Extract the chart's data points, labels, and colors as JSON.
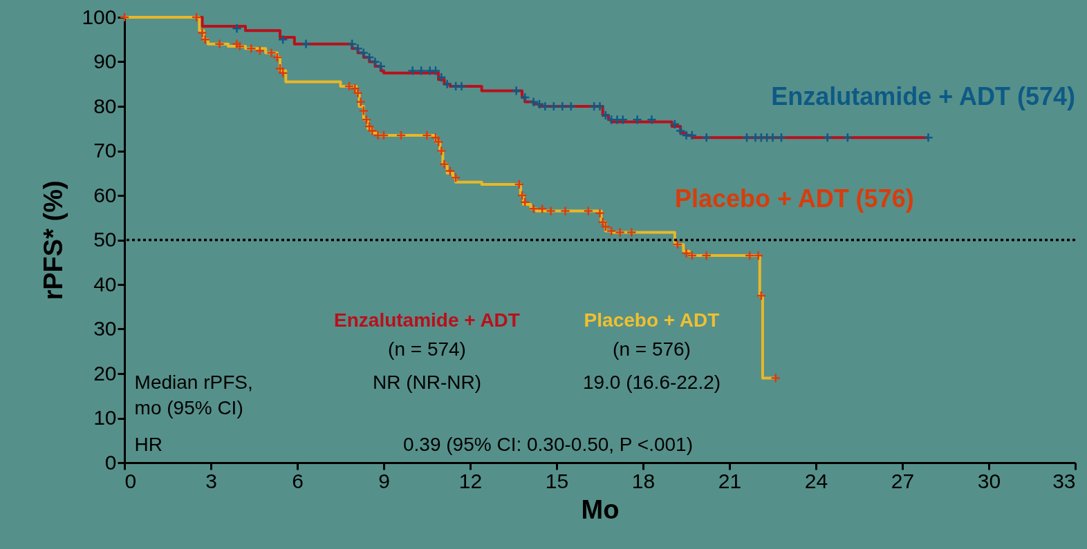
{
  "chart_data": {
    "type": "step",
    "xlabel": "Mo",
    "ylabel": "rPFS* (%)",
    "xlim": [
      0,
      33
    ],
    "xticks": [
      0,
      3,
      6,
      9,
      12,
      15,
      18,
      21,
      24,
      27,
      30,
      33
    ],
    "ylim": [
      0,
      100
    ],
    "yticks": [
      0,
      10,
      20,
      30,
      40,
      50,
      60,
      70,
      80,
      90,
      100
    ],
    "grid": false,
    "legend": false,
    "ref_lines": [
      {
        "axis": "y",
        "value": 50,
        "color": "#000000",
        "line_style": "dotted"
      }
    ],
    "series": [
      {
        "color": "#b8101c",
        "x": [
          0,
          2.7,
          4.2,
          5.4,
          5.9,
          7.9,
          8.1,
          8.3,
          8.5,
          8.7,
          8.9,
          9.0,
          10.9,
          11.1,
          11.3,
          12.4,
          13.8,
          13.9,
          14.2,
          14.4,
          16.6,
          16.8,
          16.9,
          19.0,
          19.3,
          19.5,
          19.7,
          27.9
        ],
        "values": [
          100,
          98,
          97,
          95.5,
          94,
          93,
          92,
          91,
          90,
          89,
          88,
          87.5,
          86,
          85,
          84.5,
          83.5,
          82,
          81,
          80.5,
          80,
          78,
          77,
          76.5,
          75.5,
          74,
          73.5,
          73,
          73
        ]
      },
      {
        "color": "#e8b828",
        "x": [
          0,
          2.6,
          2.75,
          2.9,
          3.6,
          4.2,
          4.9,
          5.3,
          5.4,
          5.6,
          7.5,
          8.05,
          8.15,
          8.3,
          8.45,
          8.6,
          8.8,
          10.8,
          10.95,
          11.05,
          11.2,
          11.4,
          11.5,
          12.4,
          13.75,
          13.85,
          14.1,
          14.3,
          16.55,
          16.7,
          16.9,
          19.1,
          19.4,
          19.6,
          22.05,
          22.15,
          22.6
        ],
        "values": [
          100,
          97,
          95,
          94,
          93.5,
          93,
          92,
          91,
          88,
          85.5,
          84.5,
          83,
          80,
          77,
          75,
          74,
          73.5,
          72,
          70,
          67,
          65,
          64,
          63,
          62.5,
          60,
          58,
          57,
          56.5,
          54,
          52,
          51.7,
          49,
          47.5,
          46.5,
          37.5,
          19,
          19
        ]
      },
      {
        "type": "scatter",
        "marker": "cross",
        "name": "Enzalutamide + ADT (574)",
        "color": "#0d5a86",
        "x": [
          3.9,
          5.5,
          6.3,
          7.9,
          8.1,
          8.3,
          8.5,
          8.7,
          8.9,
          10.0,
          10.3,
          10.6,
          10.8,
          11.0,
          11.2,
          11.5,
          11.7,
          13.6,
          13.9,
          14.2,
          14.4,
          14.6,
          14.9,
          15.2,
          15.5,
          16.3,
          16.5,
          16.7,
          16.9,
          17.1,
          17.3,
          17.8,
          18.3,
          19.1,
          19.3,
          19.5,
          19.7,
          20.2,
          21.6,
          21.9,
          22.1,
          22.3,
          22.5,
          22.8,
          24.4,
          25.1,
          27.9
        ],
        "values": [
          97.5,
          95,
          94,
          94,
          93,
          92,
          91,
          90,
          89,
          88,
          88,
          88,
          88,
          86.5,
          85,
          84.5,
          84.5,
          83.5,
          82,
          81,
          80.5,
          80,
          80,
          80,
          80,
          80,
          80,
          78,
          77,
          77,
          77,
          77,
          77,
          76,
          74.5,
          73.5,
          73.5,
          73,
          73,
          73,
          73,
          73,
          73,
          73,
          73,
          73,
          73
        ]
      },
      {
        "type": "scatter",
        "marker": "cross",
        "name": "Placebo + ADT (576)",
        "color": "#d83c0c",
        "x": [
          0,
          2.5,
          2.7,
          2.8,
          3.3,
          3.9,
          4.0,
          4.4,
          4.7,
          5.1,
          5.3,
          5.4,
          5.5,
          7.8,
          8.0,
          8.1,
          8.2,
          8.3,
          8.4,
          8.5,
          8.6,
          8.8,
          9.0,
          9.6,
          10.5,
          10.8,
          10.9,
          11.0,
          11.1,
          11.3,
          11.5,
          13.7,
          13.8,
          13.9,
          14.2,
          14.5,
          14.8,
          15.3,
          16.1,
          16.5,
          16.6,
          16.7,
          16.9,
          17.2,
          17.6,
          19.2,
          19.5,
          19.7,
          20.2,
          21.7,
          22.0,
          22.1,
          22.6
        ],
        "values": [
          100,
          100,
          96.5,
          95,
          94,
          94,
          93.5,
          93,
          92.5,
          92,
          91,
          88.5,
          87.5,
          84.5,
          84,
          83,
          81,
          79,
          77,
          75.5,
          74.5,
          73.5,
          73.5,
          73.5,
          73.5,
          73,
          72,
          70,
          67,
          65.5,
          64,
          62.5,
          60,
          58.5,
          57,
          57,
          56.5,
          56.5,
          56.5,
          56,
          54,
          53,
          52,
          51.7,
          51.7,
          49,
          47,
          46.5,
          46.5,
          46.5,
          46.5,
          37.5,
          19
        ]
      }
    ],
    "annotations": [
      "Enzalutamide + ADT",
      "(n = 574)",
      "Placebo + ADT",
      "(n = 576)",
      "Median rPFS,\nmo (95% CI)",
      "NR (NR-NR)",
      "19.0 (16.6-22.2)",
      "HR",
      "0.39 (95% CI: 0.30-0.50, P <.001)"
    ]
  }
}
